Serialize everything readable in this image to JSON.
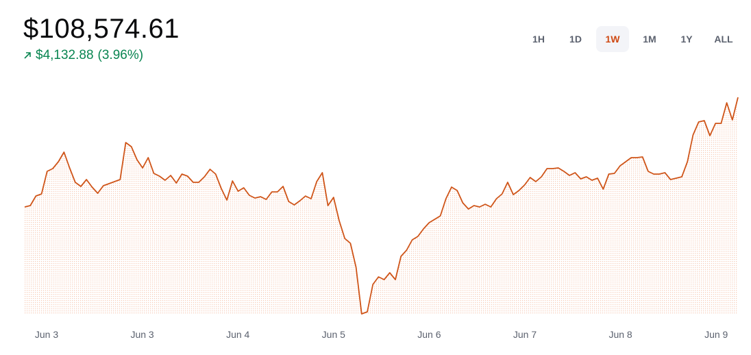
{
  "header": {
    "price": "$108,574.61",
    "change": "$4,132.88",
    "change_percent": "(3.96%)"
  },
  "ranges": {
    "labels": [
      "1H",
      "1D",
      "1W",
      "1M",
      "1Y",
      "ALL"
    ],
    "active": 2
  },
  "chart_data": {
    "type": "line",
    "color": "#cf5418",
    "x_labels": [
      "Jun 3",
      "Jun 3",
      "Jun 4",
      "Jun 5",
      "Jun 6",
      "Jun 7",
      "Jun 8",
      "Jun 9"
    ],
    "values": [
      104442,
      104494,
      104855,
      104933,
      105785,
      105888,
      106147,
      106508,
      105914,
      105372,
      105217,
      105475,
      105191,
      104959,
      105243,
      105320,
      105398,
      105475,
      106870,
      106715,
      106224,
      105914,
      106302,
      105708,
      105604,
      105449,
      105630,
      105346,
      105682,
      105604,
      105372,
      105372,
      105579,
      105863,
      105682,
      105139,
      104700,
      105424,
      105036,
      105165,
      104881,
      104778,
      104829,
      104726,
      105010,
      105010,
      105217,
      104649,
      104519,
      104674,
      104855,
      104752,
      105398,
      105734,
      104494,
      104804,
      103925,
      103254,
      103073,
      102169,
      100413,
      100490,
      101523,
      101807,
      101704,
      101962,
      101704,
      102582,
      102815,
      103202,
      103331,
      103615,
      103848,
      103977,
      104106,
      104752,
      105191,
      105062,
      104597,
      104365,
      104494,
      104442,
      104545,
      104442,
      104752,
      104933,
      105372,
      104907,
      105062,
      105269,
      105553,
      105398,
      105579,
      105888,
      105888,
      105914,
      105785,
      105630,
      105734,
      105501,
      105579,
      105449,
      105527,
      105114,
      105682,
      105708,
      105992,
      106147,
      106302,
      106302,
      106328,
      105785,
      105682,
      105682,
      105734,
      105475,
      105527,
      105579,
      106147,
      107154,
      107645,
      107697,
      107128,
      107593,
      107593,
      108368,
      107722,
      108575
    ]
  }
}
